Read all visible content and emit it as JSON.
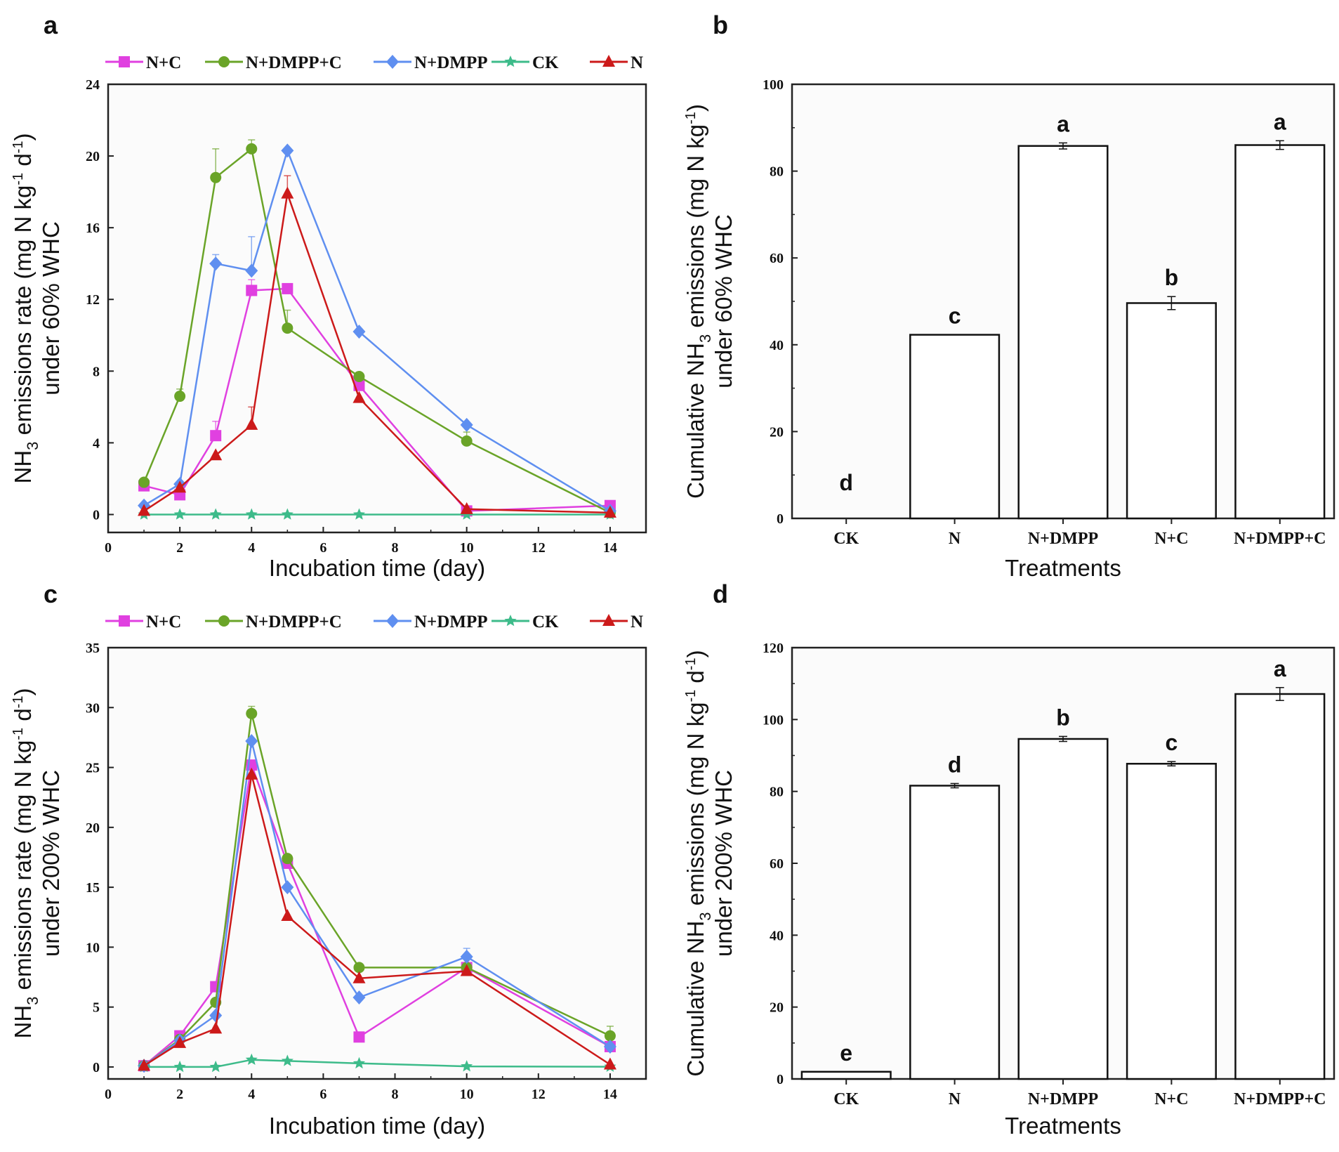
{
  "chart_data": [
    {
      "panel": "a",
      "type": "line",
      "title": "",
      "xlabel": "Incubation time (day)",
      "ylabel": {
        "prefix": "NH",
        "sub": "3",
        "mid": " emissions rate  (mg N kg",
        "sup1": "-1",
        "mid2": " d",
        "sup2": "-1",
        "end": ")",
        "line2": "under 60% WHC"
      },
      "xlim": [
        0,
        15
      ],
      "ylim": [
        -1,
        24
      ],
      "xticks": [
        0,
        2,
        4,
        6,
        8,
        10,
        12,
        14
      ],
      "yticks": [
        0,
        4,
        8,
        12,
        16,
        20,
        24
      ],
      "x": [
        1,
        2,
        3,
        4,
        5,
        7,
        10,
        14
      ],
      "series": [
        {
          "name": "N+C",
          "color": "#e040e0",
          "marker": "square",
          "values": [
            1.6,
            1.1,
            4.4,
            12.5,
            12.6,
            7.2,
            0.2,
            0.5
          ],
          "errors": [
            0,
            0,
            0.8,
            0.6,
            0,
            0.6,
            0,
            0
          ]
        },
        {
          "name": "N+DMPP+C",
          "color": "#6aa428",
          "marker": "circle",
          "values": [
            1.8,
            6.6,
            18.8,
            20.4,
            10.4,
            7.7,
            4.1,
            0.1
          ],
          "errors": [
            0,
            0.4,
            1.6,
            0.5,
            1.0,
            0,
            0.5,
            0
          ]
        },
        {
          "name": "N+DMPP",
          "color": "#5f8ff0",
          "marker": "diamond",
          "values": [
            0.5,
            1.7,
            14.0,
            13.6,
            20.3,
            10.2,
            5.0,
            0.2
          ],
          "errors": [
            0,
            0,
            0.5,
            1.9,
            0,
            0,
            0,
            0
          ]
        },
        {
          "name": "CK",
          "color": "#3dbb8a",
          "marker": "star",
          "values": [
            0,
            0,
            0,
            0,
            0,
            0,
            0,
            0
          ],
          "errors": [
            0,
            0,
            0,
            0,
            0,
            0,
            0,
            0
          ]
        },
        {
          "name": "N",
          "color": "#cc1a1a",
          "marker": "triangle",
          "values": [
            0.2,
            1.5,
            3.3,
            5.0,
            17.9,
            6.5,
            0.3,
            0.1
          ],
          "errors": [
            0,
            0,
            0,
            1.0,
            1.0,
            0,
            0,
            0
          ]
        }
      ]
    },
    {
      "panel": "b",
      "type": "bar",
      "xlabel": "Treatments",
      "ylabel": {
        "prefix": "Cumulative NH",
        "sub": "3",
        "mid": " emissions  (mg N kg",
        "sup1": "-1",
        "end": ")",
        "line2": "under 60% WHC"
      },
      "ylim": [
        0,
        100
      ],
      "yticks": [
        0,
        20,
        40,
        60,
        80,
        100
      ],
      "categories": [
        "CK",
        "N",
        "N+DMPP",
        "N+C",
        "N+DMPP+C"
      ],
      "values": [
        0,
        42.3,
        85.8,
        49.6,
        86.0
      ],
      "errors": [
        0,
        0,
        0.7,
        1.5,
        1.0
      ],
      "letters": [
        "d",
        "c",
        "a",
        "b",
        "a"
      ]
    },
    {
      "panel": "c",
      "type": "line",
      "title": "",
      "xlabel": "Incubation time (day)",
      "ylabel": {
        "prefix": "NH",
        "sub": "3",
        "mid": " emissions rate  (mg N kg",
        "sup1": "-1",
        "mid2": " d",
        "sup2": "-1",
        "end": ")",
        "line2": "under 200% WHC"
      },
      "xlim": [
        0,
        15
      ],
      "ylim": [
        -1,
        35
      ],
      "xticks": [
        0,
        2,
        4,
        6,
        8,
        10,
        12,
        14
      ],
      "yticks": [
        0,
        5,
        10,
        15,
        20,
        25,
        30,
        35
      ],
      "x": [
        1,
        2,
        3,
        4,
        5,
        7,
        10,
        14
      ],
      "series": [
        {
          "name": "N+C",
          "color": "#e040e0",
          "marker": "square",
          "values": [
            0.1,
            2.6,
            6.7,
            25.2,
            17.0,
            2.5,
            8.3,
            1.7
          ],
          "errors": [
            0,
            0,
            0,
            0,
            0,
            0,
            0,
            0
          ]
        },
        {
          "name": "N+DMPP+C",
          "color": "#6aa428",
          "marker": "circle",
          "values": [
            0.1,
            2.3,
            5.4,
            29.5,
            17.4,
            8.3,
            8.3,
            2.6
          ],
          "errors": [
            0,
            0,
            0,
            0.6,
            0,
            0,
            0,
            0.8
          ]
        },
        {
          "name": "N+DMPP",
          "color": "#5f8ff0",
          "marker": "diamond",
          "values": [
            0.1,
            2.2,
            4.3,
            27.2,
            15.0,
            5.8,
            9.2,
            1.7
          ],
          "errors": [
            0,
            0,
            0,
            0,
            0,
            0,
            0.7,
            0
          ]
        },
        {
          "name": "CK",
          "color": "#3dbb8a",
          "marker": "star",
          "values": [
            0,
            0,
            0,
            0.6,
            0.5,
            0.3,
            0.05,
            0.02
          ],
          "errors": [
            0,
            0,
            0,
            0,
            0,
            0,
            0,
            0
          ]
        },
        {
          "name": "N",
          "color": "#cc1a1a",
          "marker": "triangle",
          "values": [
            0.1,
            2.0,
            3.2,
            24.4,
            12.6,
            7.4,
            8.0,
            0.2
          ],
          "errors": [
            0,
            0,
            0,
            0,
            0,
            0,
            0,
            0
          ]
        }
      ]
    },
    {
      "panel": "d",
      "type": "bar",
      "xlabel": "Treatments",
      "ylabel": {
        "prefix": "Cumulative NH",
        "sub": "3",
        "mid": " emissions  (mg N kg",
        "sup1": "-1",
        "mid2": " d",
        "sup2": "-1",
        "end": ")",
        "line2": "under 200% WHC"
      },
      "ylim": [
        0,
        120
      ],
      "yticks": [
        0,
        20,
        40,
        60,
        80,
        100,
        120
      ],
      "categories": [
        "CK",
        "N",
        "N+DMPP",
        "N+C",
        "N+DMPP+C"
      ],
      "values": [
        2.0,
        81.6,
        94.6,
        87.7,
        107.1
      ],
      "errors": [
        0,
        0.6,
        0.7,
        0.6,
        1.8
      ],
      "letters": [
        "e",
        "d",
        "b",
        "c",
        "a"
      ]
    }
  ]
}
